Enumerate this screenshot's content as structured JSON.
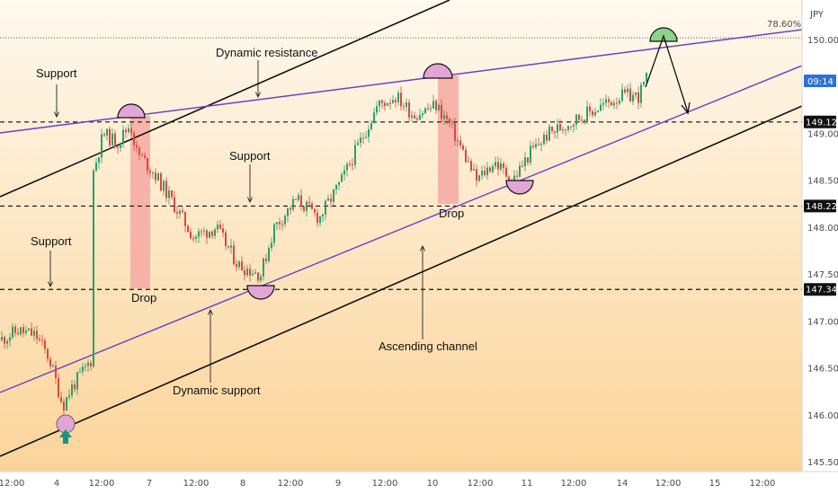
{
  "chart_data": {
    "type": "candlestick",
    "currency_label": "JPY",
    "fib_label": "78.60%",
    "price_badge": "09:14",
    "y_ticks": [
      "150.000",
      "149.000",
      "148.500",
      "148.000",
      "147.500",
      "147.000",
      "146.500",
      "146.000",
      "145.500"
    ],
    "level_labels": [
      "149.124",
      "148.228",
      "147.340"
    ],
    "x_ticks": [
      "12:00",
      "4",
      "12:00",
      "7",
      "12:00",
      "8",
      "12:00",
      "9",
      "12:00",
      "10",
      "12:00",
      "11",
      "12:00",
      "14",
      "12:00",
      "15",
      "12:00"
    ],
    "horizontal_levels": [
      149.124,
      148.228,
      147.34
    ],
    "fib_level": 150.02,
    "annotations": {
      "support_1": "Support",
      "support_2": "Support",
      "support_3": "Support",
      "dynamic_resistance": "Dynamic resistance",
      "dynamic_support": "Dynamic support",
      "ascending_channel": "Ascending channel",
      "drop_1": "Drop",
      "drop_2": "Drop"
    },
    "colors": {
      "background_top": "#fff9ee",
      "background_bottom": "#fbd49a",
      "bull": "#26a269",
      "bear": "#e0453f",
      "channel_line": "#111111",
      "dynamic_line": "#6a3fc8",
      "drop_zone": "#f6a9a3",
      "touch_circle": "#e2a6d6",
      "projection_circle": "#8fd18a",
      "arrow_up": "#11997f",
      "badge": "#2f6fe0"
    }
  }
}
